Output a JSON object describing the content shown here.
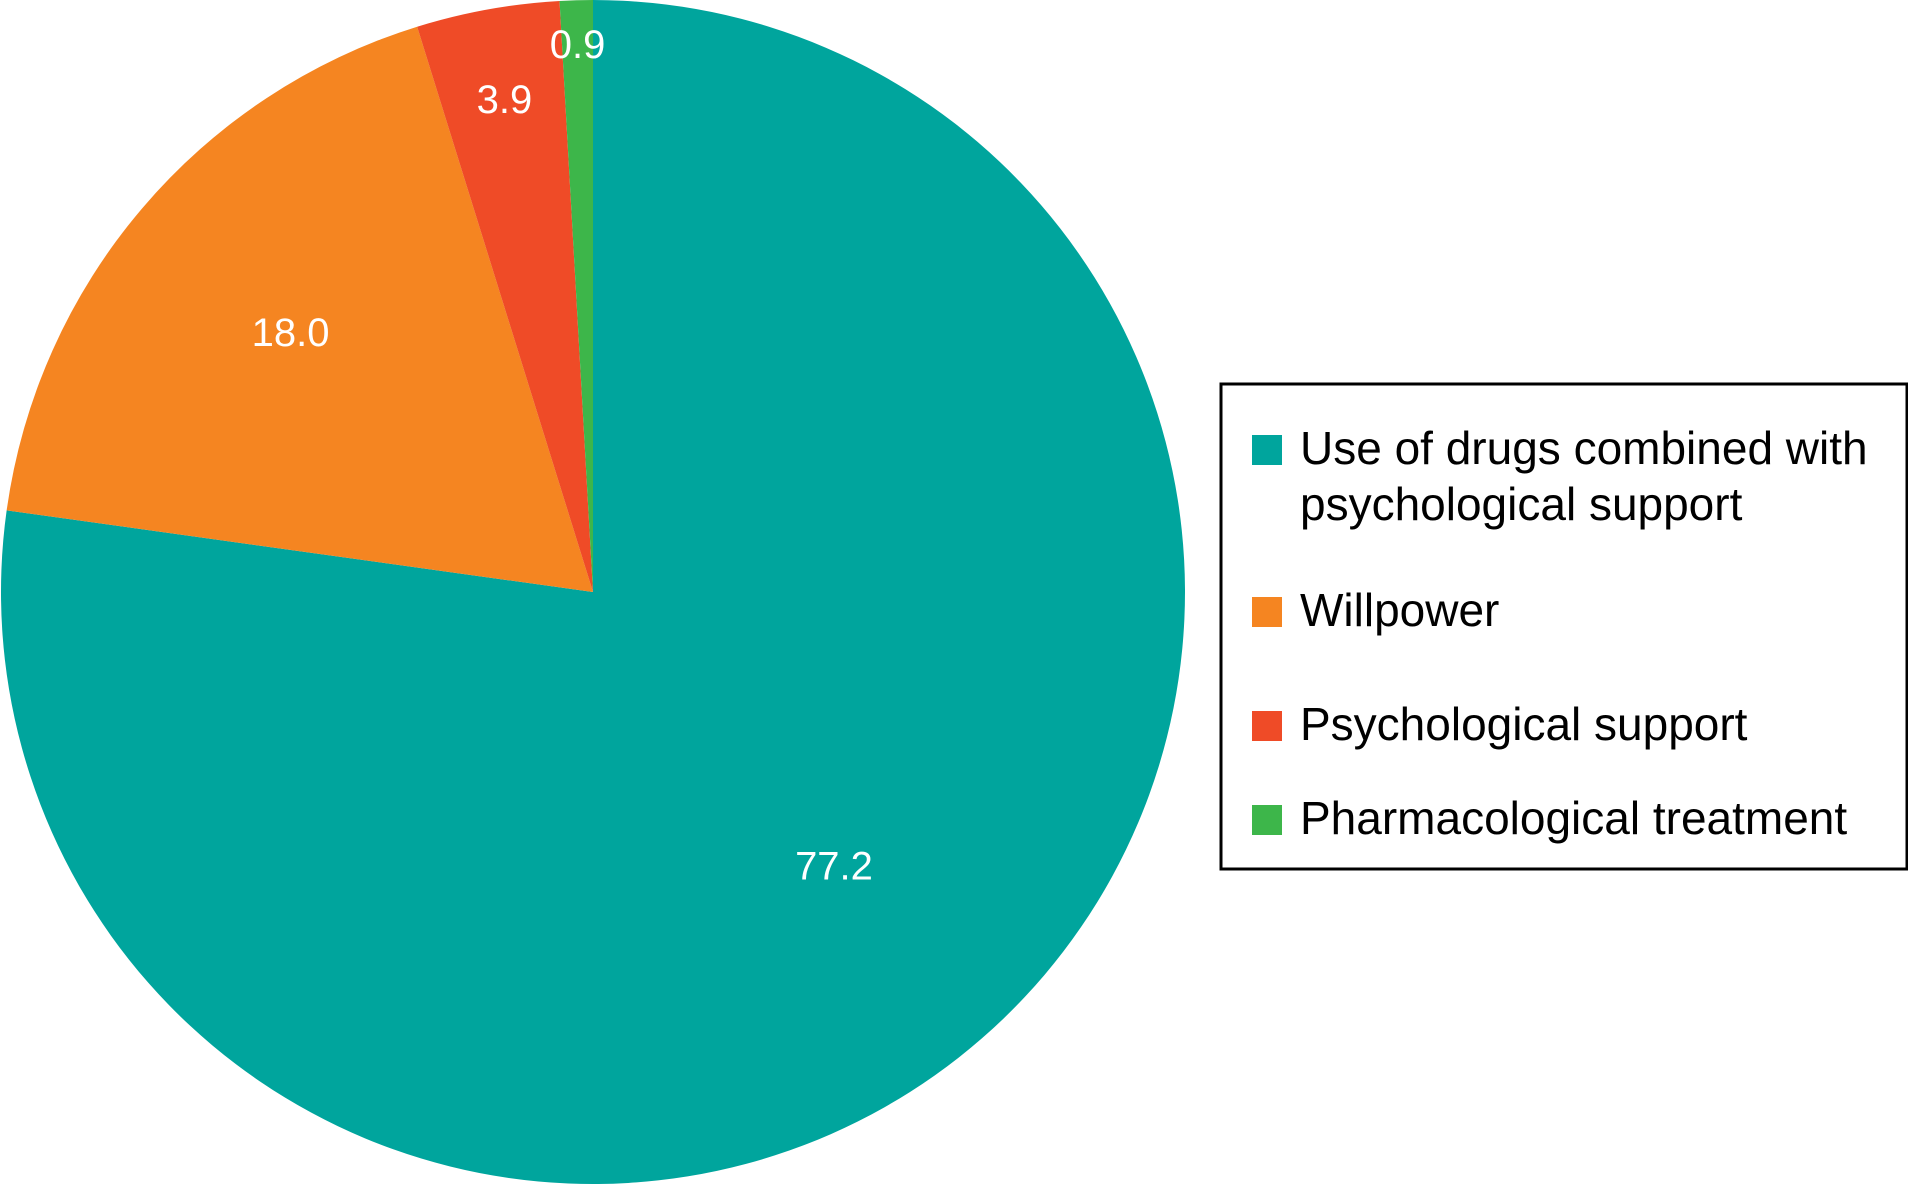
{
  "chart_data": {
    "type": "pie",
    "title": "",
    "start_angle_deg": 0,
    "direction": "clockwise",
    "legend_position": "right",
    "slices": [
      {
        "label": "Use of drugs combined with psychological support",
        "legend_lines": [
          "Use of drugs combined with",
          "psychological support"
        ],
        "value": 77.2,
        "value_label": "77.2",
        "color": "#00a59d"
      },
      {
        "label": "Willpower",
        "legend_lines": [
          "Willpower"
        ],
        "value": 18.0,
        "value_label": "18.0",
        "color": "#f58521"
      },
      {
        "label": "Psychological support",
        "legend_lines": [
          "Psychological support"
        ],
        "value": 3.9,
        "value_label": "3.9",
        "color": "#ef4b27"
      },
      {
        "label": "Pharmacological treatment",
        "legend_lines": [
          "Pharmacological treatment"
        ],
        "value": 0.9,
        "value_label": "0.9",
        "color": "#3db64a"
      }
    ]
  }
}
